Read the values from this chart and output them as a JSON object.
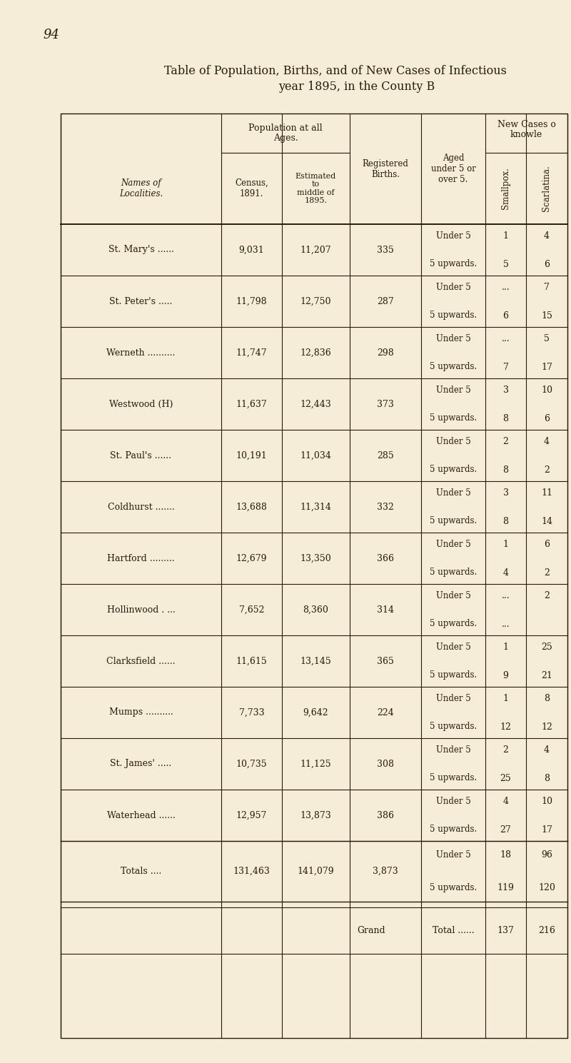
{
  "page_number": "94",
  "title_line1": "Table of Population, Births, and of New Cases of Infectious ",
  "title_line2": "year 1895, in the County B ",
  "background_color": "#f5edd8",
  "text_color": "#2a1a0a",
  "rows": [
    {
      "name": "St. Mary's ......",
      "census": "9,031",
      "estimated": "11,207",
      "births": "335",
      "under5_small": "1",
      "over5_small": "5",
      "under5_scar": "4",
      "over5_scar": "6"
    },
    {
      "name": "St. Peter's .....",
      "census": "11,798",
      "estimated": "12,750",
      "births": "287",
      "under5_small": "...",
      "over5_small": "6",
      "under5_scar": "7",
      "over5_scar": "15"
    },
    {
      "name": "Werneth ..........",
      "census": "11,747",
      "estimated": "12,836",
      "births": "298",
      "under5_small": "...",
      "over5_small": "7",
      "under5_scar": "5",
      "over5_scar": "17"
    },
    {
      "name": "Westwood (H)",
      "census": "11,637",
      "estimated": "12,443",
      "births": "373",
      "under5_small": "3",
      "over5_small": "8",
      "under5_scar": "10",
      "over5_scar": "6"
    },
    {
      "name": "St. Paul's ......",
      "census": "10,191",
      "estimated": "11,034",
      "births": "285",
      "under5_small": "2",
      "over5_small": "8",
      "under5_scar": "4",
      "over5_scar": "2"
    },
    {
      "name": "Coldhurst .......",
      "census": "13,688",
      "estimated": "11,314",
      "births": "332",
      "under5_small": "3",
      "over5_small": "8",
      "under5_scar": "11",
      "over5_scar": "14"
    },
    {
      "name": "Hartford .........",
      "census": "12,679",
      "estimated": "13,350",
      "births": "366",
      "under5_small": "1",
      "over5_small": "4",
      "under5_scar": "6",
      "over5_scar": "2"
    },
    {
      "name": "Hollinwood . ...",
      "census": "7,652",
      "estimated": "8,360",
      "births": "314",
      "under5_small": "...",
      "over5_small": "...",
      "under5_scar": "2",
      "over5_scar": ""
    },
    {
      "name": "Clarksfield ......",
      "census": "11,615",
      "estimated": "13,145",
      "births": "365",
      "under5_small": "1",
      "over5_small": "9",
      "under5_scar": "25",
      "over5_scar": "21"
    },
    {
      "name": "Mumps ..........",
      "census": "7,733",
      "estimated": "9,642",
      "births": "224",
      "under5_small": "1",
      "over5_small": "12",
      "under5_scar": "8",
      "over5_scar": "12"
    },
    {
      "name": "St. James' .....",
      "census": "10,735",
      "estimated": "11,125",
      "births": "308",
      "under5_small": "2",
      "over5_small": "25",
      "under5_scar": "4",
      "over5_scar": "8"
    },
    {
      "name": "Waterhead ......",
      "census": "12,957",
      "estimated": "13,873",
      "births": "386",
      "under5_small": "4",
      "over5_small": "27",
      "under5_scar": "10",
      "over5_scar": "17"
    }
  ],
  "totals": {
    "name": "Totals ....",
    "census": "131,463",
    "estimated": "141,079",
    "births": "3,873",
    "under5_small": "18",
    "over5_small": "119",
    "under5_scar": "96",
    "over5_scar": "120"
  },
  "grand_total": {
    "label": "Grand",
    "text": "Total ......",
    "small": "137",
    "scar": "216"
  }
}
